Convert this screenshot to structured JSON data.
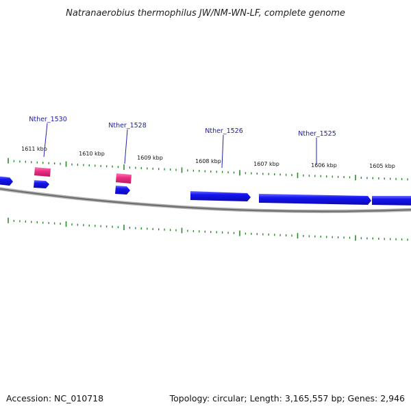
{
  "title": "Natranaerobius thermophilus JW/NM-WN-LF, complete genome",
  "footer": {
    "accession": "Accession: NC_010718",
    "summary": "Topology: circular; Length: 3,165,557 bp; Genes: 2,946"
  },
  "colors": {
    "backbone": "#7a7a7a",
    "cds": "#1010ee",
    "rna": "#e8287a",
    "tick": "#2a8a2a",
    "label": "#1a1aa0"
  },
  "scale_labels": [
    "1611 kbp",
    "1610 kbp",
    "1609 kbp",
    "1608 kbp",
    "1607 kbp",
    "1606 kbp",
    "1605 kbp"
  ],
  "gene_labels": [
    "Nther_1530",
    "Nther_1528",
    "Nther_1526",
    "Nther_1525"
  ]
}
